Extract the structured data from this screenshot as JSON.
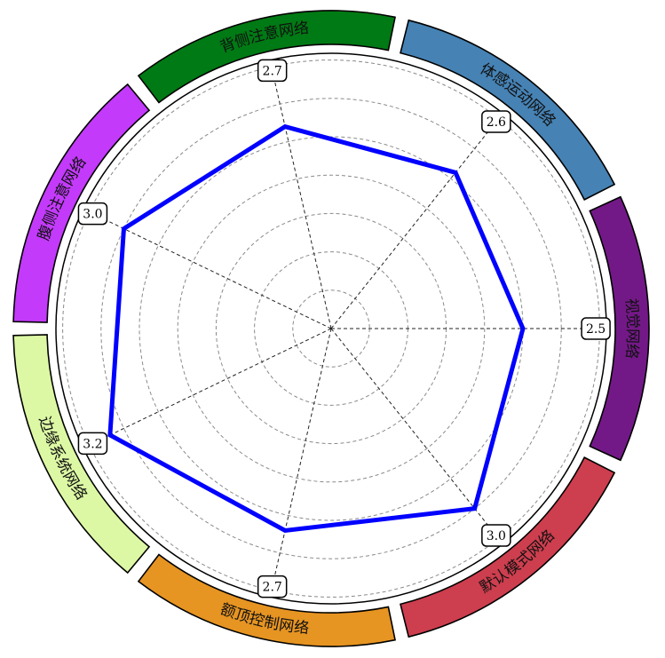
{
  "chart_data": {
    "type": "radar",
    "title": "",
    "categories": [
      "视觉网络",
      "体感运动网络",
      "背侧注意网络",
      "腹侧注意网络",
      "边缘系统网络",
      "额顶控制网络",
      "默认模式网络"
    ],
    "series": [
      {
        "values": [
          2.5,
          2.6,
          2.7,
          3.0,
          3.2,
          2.7,
          3.0
        ]
      }
    ],
    "value_labels": [
      "2.5",
      "2.6",
      "2.7",
      "3.0",
      "3.2",
      "2.7",
      "3.0"
    ],
    "rlim": [
      0,
      5
    ],
    "grid": true,
    "line_color": "#0000ff",
    "segment_colors": [
      "#731987",
      "#4682b4",
      "#007a14",
      "#c33afa",
      "#dcf8a4",
      "#e69422",
      "#cd3e4e"
    ]
  }
}
